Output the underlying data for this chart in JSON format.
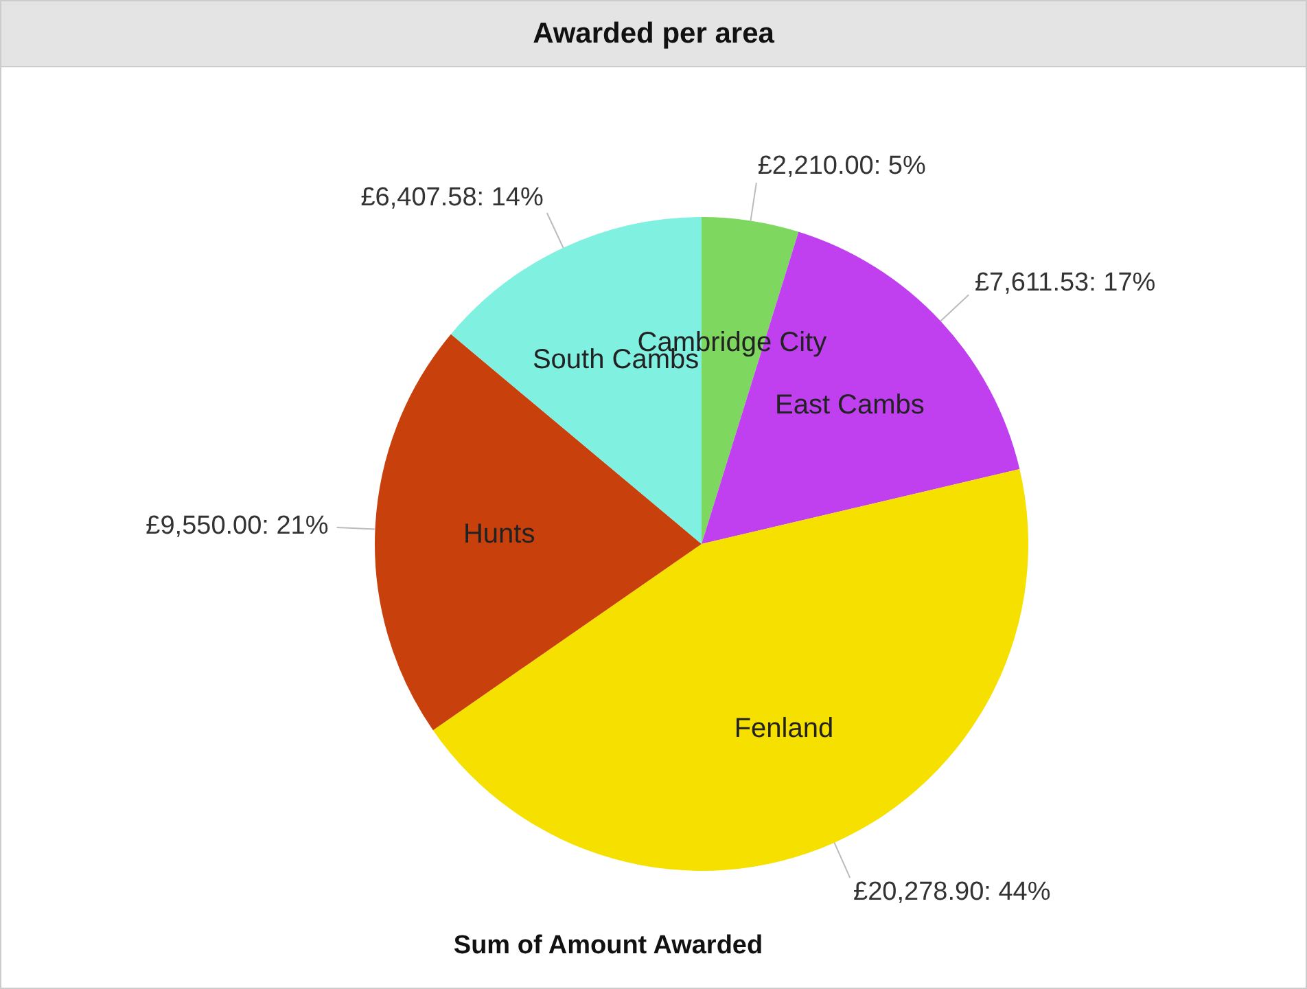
{
  "chart_data": {
    "type": "pie",
    "title": "Awarded per area",
    "xlabel": "Sum of Amount Awarded",
    "categories": [
      "Cambridge City",
      "East Cambs",
      "Fenland",
      "Hunts",
      "South Cambs"
    ],
    "values": [
      2210.0,
      7611.53,
      20278.9,
      9550.0,
      6407.58
    ],
    "colors": [
      "#7ed860",
      "#c040f0",
      "#f5e000",
      "#c8400c",
      "#80f0e0"
    ],
    "value_labels": [
      "£2,210.00: 5%",
      "£7,611.53: 17%",
      "£20,278.90: 44%",
      "£9,550.00: 21%",
      "£6,407.58: 14%"
    ],
    "legend": false
  }
}
